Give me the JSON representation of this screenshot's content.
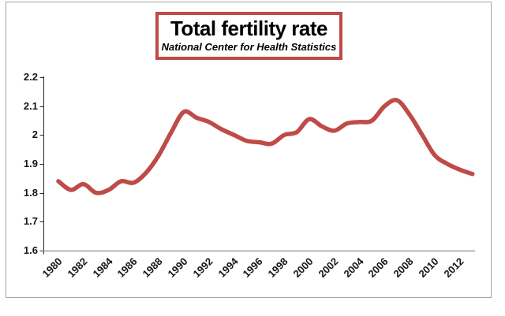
{
  "window": {
    "background_color": "#ffffff",
    "frame_border_color": "#a6a6a6"
  },
  "title_box": {
    "title": "Total fertility rate",
    "subtitle": "National Center for Health Statistics",
    "border_color": "#be4b48",
    "text_color": "#000000"
  },
  "chart_data": {
    "type": "line",
    "title": "Total fertility rate",
    "subtitle": "National Center for Health Statistics",
    "x": [
      1980,
      1981,
      1982,
      1983,
      1984,
      1985,
      1986,
      1987,
      1988,
      1989,
      1990,
      1991,
      1992,
      1993,
      1994,
      1995,
      1996,
      1997,
      1998,
      1999,
      2000,
      2001,
      2002,
      2003,
      2004,
      2005,
      2006,
      2007,
      2008,
      2009,
      2010,
      2011,
      2012,
      2013
    ],
    "series": [
      {
        "name": "Total fertility rate",
        "color": "#be4b48",
        "smoothed": true,
        "values": [
          1.84,
          1.81,
          1.83,
          1.8,
          1.81,
          1.84,
          1.835,
          1.87,
          1.93,
          2.01,
          2.08,
          2.06,
          2.045,
          2.02,
          2.0,
          1.98,
          1.975,
          1.97,
          2.0,
          2.01,
          2.055,
          2.03,
          2.015,
          2.04,
          2.045,
          2.05,
          2.1,
          2.12,
          2.07,
          2.0,
          1.93,
          1.9,
          1.88,
          1.865
        ]
      }
    ],
    "xlabel": "",
    "ylabel": "",
    "ylim": [
      1.6,
      2.2
    ],
    "ytick_values": [
      2.2,
      2.1,
      2.0,
      1.9,
      1.8,
      1.7,
      1.6
    ],
    "ytick_labels": [
      "2.2",
      "2.1",
      "2",
      "1.9",
      "1.8",
      "1.7",
      "1.6"
    ],
    "xtick_labels": [
      "1980",
      "1982",
      "1984",
      "1986",
      "1988",
      "1990",
      "1992",
      "1994",
      "1996",
      "1998",
      "2000",
      "2002",
      "2004",
      "2006",
      "2008",
      "2010",
      "2012"
    ],
    "grid": false,
    "legend": "none",
    "axis_colors": {
      "y": "#262626",
      "x": "#8c8c8c"
    }
  }
}
